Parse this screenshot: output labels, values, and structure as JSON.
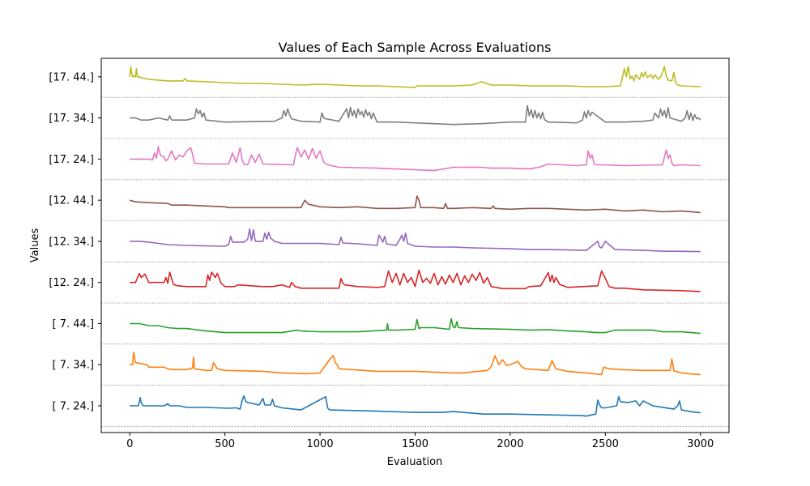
{
  "chart_data": {
    "type": "line",
    "title": "Values of Each Sample Across Evaluations",
    "xlabel": "Evaluation",
    "ylabel": "Values",
    "xlim": [
      -150,
      3150
    ],
    "ylim": [
      -0.15,
      8.95
    ],
    "x_ticks": [
      0,
      500,
      1000,
      1500,
      2000,
      2500,
      3000
    ],
    "y_ticks": [
      {
        "value": 0.5,
        "label": "[ 7. 24.]"
      },
      {
        "value": 1.5,
        "label": "[ 7. 34.]"
      },
      {
        "value": 2.5,
        "label": "[ 7. 44.]"
      },
      {
        "value": 3.5,
        "label": "[12. 24.]"
      },
      {
        "value": 4.5,
        "label": "[12. 34.]"
      },
      {
        "value": 5.5,
        "label": "[12. 44.]"
      },
      {
        "value": 6.5,
        "label": "[17. 24.]"
      },
      {
        "value": 7.5,
        "label": "[17. 34.]"
      },
      {
        "value": 8.5,
        "label": "[17. 44.]"
      }
    ],
    "hlines": [
      0,
      1,
      2,
      3,
      4,
      5,
      6,
      7,
      8
    ],
    "series": [
      {
        "color": "#1f77b4",
        "x": [
          0,
          45,
          55,
          60,
          70,
          80,
          140,
          180,
          200,
          210,
          260,
          300,
          400,
          520,
          560,
          580,
          590,
          600,
          610,
          620,
          680,
          700,
          710,
          740,
          750,
          760,
          800,
          900,
          1030,
          1040,
          1050,
          1300,
          1500,
          1650,
          1700,
          1860,
          2000,
          2200,
          2300,
          2380,
          2400,
          2450,
          2460,
          2470,
          2480,
          2500,
          2560,
          2570,
          2580,
          2620,
          2660,
          2680,
          2700,
          2750,
          2860,
          2880,
          2890,
          2900,
          2960,
          3000
        ],
        "y": [
          0.5,
          0.5,
          0.7,
          0.58,
          0.5,
          0.5,
          0.5,
          0.5,
          0.55,
          0.5,
          0.5,
          0.46,
          0.46,
          0.44,
          0.45,
          0.42,
          0.62,
          0.74,
          0.6,
          0.58,
          0.52,
          0.68,
          0.52,
          0.52,
          0.66,
          0.5,
          0.45,
          0.4,
          0.72,
          0.45,
          0.4,
          0.37,
          0.34,
          0.34,
          0.36,
          0.3,
          0.3,
          0.28,
          0.27,
          0.26,
          0.25,
          0.3,
          0.64,
          0.52,
          0.45,
          0.45,
          0.5,
          0.72,
          0.6,
          0.58,
          0.62,
          0.5,
          0.62,
          0.5,
          0.42,
          0.5,
          0.62,
          0.4,
          0.35,
          0.33
        ]
      },
      {
        "color": "#ff7f0e",
        "x": [
          0,
          15,
          20,
          30,
          90,
          100,
          180,
          200,
          230,
          300,
          330,
          335,
          340,
          400,
          430,
          440,
          460,
          500,
          700,
          800,
          930,
          1000,
          1050,
          1070,
          1080,
          1090,
          1100,
          1300,
          1500,
          1700,
          1750,
          1880,
          1900,
          1920,
          1940,
          1960,
          1980,
          2000,
          2040,
          2060,
          2080,
          2200,
          2220,
          2240,
          2300,
          2400,
          2480,
          2490,
          2520,
          2580,
          2700,
          2840,
          2850,
          2860,
          2900,
          2940,
          3000
        ],
        "y": [
          1.5,
          1.5,
          1.8,
          1.55,
          1.5,
          1.44,
          1.44,
          1.4,
          1.38,
          1.38,
          1.42,
          1.68,
          1.4,
          1.36,
          1.36,
          1.55,
          1.4,
          1.36,
          1.34,
          1.3,
          1.28,
          1.3,
          1.62,
          1.72,
          1.55,
          1.5,
          1.4,
          1.34,
          1.34,
          1.3,
          1.3,
          1.36,
          1.45,
          1.72,
          1.5,
          1.62,
          1.48,
          1.5,
          1.58,
          1.45,
          1.4,
          1.36,
          1.6,
          1.4,
          1.34,
          1.3,
          1.26,
          1.44,
          1.4,
          1.38,
          1.36,
          1.36,
          1.64,
          1.35,
          1.3,
          1.28,
          1.26
        ]
      },
      {
        "color": "#2ca02c",
        "x": [
          0,
          50,
          100,
          150,
          200,
          250,
          300,
          350,
          400,
          500,
          800,
          880,
          900,
          1000,
          1200,
          1350,
          1355,
          1360,
          1400,
          1500,
          1510,
          1520,
          1530,
          1600,
          1680,
          1690,
          1700,
          1710,
          1720,
          1725,
          1730,
          1800,
          2000,
          2100,
          2200,
          2300,
          2400,
          2450,
          2500,
          2550,
          2750,
          2800,
          2900,
          3000
        ],
        "y": [
          2.5,
          2.5,
          2.45,
          2.45,
          2.4,
          2.38,
          2.38,
          2.35,
          2.32,
          2.28,
          2.28,
          2.34,
          2.32,
          2.3,
          2.3,
          2.34,
          2.5,
          2.34,
          2.34,
          2.36,
          2.6,
          2.38,
          2.4,
          2.4,
          2.36,
          2.62,
          2.42,
          2.4,
          2.55,
          2.42,
          2.4,
          2.38,
          2.36,
          2.34,
          2.35,
          2.32,
          2.3,
          2.28,
          2.28,
          2.34,
          2.34,
          2.3,
          2.3,
          2.26
        ]
      },
      {
        "color": "#d62728",
        "x": [
          0,
          30,
          50,
          60,
          80,
          100,
          180,
          190,
          200,
          210,
          230,
          250,
          300,
          400,
          410,
          420,
          430,
          450,
          460,
          480,
          500,
          550,
          570,
          700,
          750,
          800,
          840,
          850,
          870,
          900,
          1100,
          1110,
          1120,
          1130,
          1200,
          1300,
          1340,
          1360,
          1380,
          1400,
          1420,
          1440,
          1460,
          1480,
          1500,
          1520,
          1540,
          1560,
          1580,
          1600,
          1620,
          1640,
          1660,
          1680,
          1700,
          1720,
          1740,
          1760,
          1780,
          1800,
          1820,
          1840,
          1860,
          1880,
          1900,
          1960,
          2080,
          2100,
          2160,
          2200,
          2210,
          2220,
          2230,
          2240,
          2260,
          2290,
          2300,
          2460,
          2480,
          2500,
          2520,
          2550,
          2600,
          2700,
          2900,
          3000
        ],
        "y": [
          3.5,
          3.5,
          3.72,
          3.62,
          3.7,
          3.5,
          3.5,
          3.62,
          3.48,
          3.75,
          3.45,
          3.42,
          3.4,
          3.4,
          3.68,
          3.55,
          3.75,
          3.62,
          3.72,
          3.48,
          3.4,
          3.4,
          3.44,
          3.4,
          3.4,
          3.44,
          3.38,
          3.5,
          3.4,
          3.36,
          3.36,
          3.6,
          3.48,
          3.44,
          3.4,
          3.38,
          3.4,
          3.78,
          3.5,
          3.72,
          3.44,
          3.72,
          3.5,
          3.62,
          3.4,
          3.8,
          3.5,
          3.6,
          3.48,
          3.72,
          3.44,
          3.64,
          3.46,
          3.68,
          3.5,
          3.72,
          3.44,
          3.66,
          3.5,
          3.7,
          3.55,
          3.74,
          3.48,
          3.62,
          3.4,
          3.35,
          3.35,
          3.4,
          3.42,
          3.74,
          3.52,
          3.68,
          3.5,
          3.62,
          3.45,
          3.4,
          3.38,
          3.42,
          3.78,
          3.6,
          3.4,
          3.36,
          3.36,
          3.32,
          3.3,
          3.28
        ]
      },
      {
        "color": "#9467bd",
        "x": [
          0,
          50,
          100,
          150,
          200,
          300,
          500,
          520,
          530,
          540,
          600,
          620,
          630,
          640,
          650,
          660,
          700,
          710,
          720,
          730,
          740,
          760,
          800,
          1000,
          1100,
          1110,
          1120,
          1200,
          1300,
          1310,
          1330,
          1340,
          1350,
          1400,
          1420,
          1430,
          1440,
          1450,
          1460,
          1500,
          1600,
          1700,
          1800,
          2000,
          2100,
          2200,
          2400,
          2460,
          2470,
          2480,
          2500,
          2550,
          2700,
          2800,
          3000
        ],
        "y": [
          4.5,
          4.5,
          4.48,
          4.45,
          4.42,
          4.4,
          4.38,
          4.42,
          4.62,
          4.48,
          4.48,
          4.55,
          4.8,
          4.52,
          4.78,
          4.5,
          4.5,
          4.7,
          4.55,
          4.72,
          4.58,
          4.5,
          4.45,
          4.45,
          4.42,
          4.6,
          4.46,
          4.44,
          4.4,
          4.65,
          4.48,
          4.62,
          4.44,
          4.4,
          4.55,
          4.65,
          4.5,
          4.7,
          4.45,
          4.38,
          4.36,
          4.36,
          4.34,
          4.32,
          4.3,
          4.3,
          4.28,
          4.5,
          4.36,
          4.34,
          4.5,
          4.3,
          4.28,
          4.26,
          4.25
        ]
      },
      {
        "color": "#8c564b",
        "x": [
          0,
          30,
          100,
          200,
          220,
          300,
          400,
          500,
          520,
          700,
          800,
          900,
          920,
          940,
          960,
          1000,
          1100,
          1200,
          1300,
          1400,
          1500,
          1510,
          1520,
          1530,
          1600,
          1650,
          1660,
          1670,
          1700,
          1800,
          1900,
          1910,
          1920,
          2000,
          2100,
          2200,
          2300,
          2400,
          2500,
          2600,
          2700,
          2800,
          2900,
          3000
        ],
        "y": [
          5.5,
          5.46,
          5.44,
          5.42,
          5.38,
          5.38,
          5.36,
          5.34,
          5.32,
          5.32,
          5.32,
          5.32,
          5.5,
          5.4,
          5.38,
          5.34,
          5.32,
          5.34,
          5.3,
          5.3,
          5.32,
          5.6,
          5.5,
          5.32,
          5.32,
          5.3,
          5.42,
          5.3,
          5.3,
          5.32,
          5.3,
          5.36,
          5.3,
          5.28,
          5.3,
          5.3,
          5.28,
          5.26,
          5.28,
          5.24,
          5.26,
          5.22,
          5.24,
          5.2
        ]
      },
      {
        "color": "#e377c2",
        "x": [
          0,
          100,
          120,
          130,
          140,
          150,
          160,
          180,
          190,
          200,
          220,
          240,
          260,
          280,
          300,
          320,
          330,
          340,
          400,
          520,
          540,
          560,
          580,
          590,
          600,
          620,
          640,
          660,
          680,
          700,
          860,
          880,
          900,
          920,
          940,
          960,
          980,
          1000,
          1020,
          1040,
          1100,
          1300,
          1500,
          1600,
          1700,
          1850,
          1900,
          2000,
          2100,
          2150,
          2200,
          2350,
          2400,
          2410,
          2420,
          2430,
          2440,
          2450,
          2500,
          2600,
          2800,
          2820,
          2830,
          2840,
          2850,
          2860,
          2900,
          3000
        ],
        "y": [
          6.5,
          6.5,
          6.48,
          6.65,
          6.52,
          6.8,
          6.6,
          6.55,
          6.46,
          6.5,
          6.7,
          6.48,
          6.6,
          6.55,
          6.7,
          6.78,
          6.62,
          6.4,
          6.38,
          6.38,
          6.65,
          6.42,
          6.78,
          6.5,
          6.38,
          6.36,
          6.6,
          6.42,
          6.62,
          6.38,
          6.36,
          6.78,
          6.55,
          6.72,
          6.5,
          6.76,
          6.52,
          6.7,
          6.42,
          6.36,
          6.3,
          6.28,
          6.24,
          6.22,
          6.3,
          6.3,
          6.28,
          6.28,
          6.26,
          6.3,
          6.38,
          6.34,
          6.36,
          6.7,
          6.52,
          6.6,
          6.4,
          6.36,
          6.36,
          6.34,
          6.36,
          6.72,
          6.52,
          6.6,
          6.4,
          6.34,
          6.36,
          6.34
        ]
      },
      {
        "color": "#7f7f7f",
        "x": [
          0,
          30,
          60,
          100,
          150,
          200,
          210,
          220,
          300,
          340,
          350,
          360,
          370,
          380,
          390,
          400,
          500,
          760,
          800,
          810,
          820,
          830,
          840,
          850,
          900,
          1000,
          1010,
          1020,
          1030,
          1100,
          1130,
          1140,
          1150,
          1160,
          1170,
          1180,
          1190,
          1200,
          1210,
          1220,
          1230,
          1240,
          1250,
          1260,
          1270,
          1280,
          1290,
          1300,
          1400,
          1500,
          1700,
          1850,
          2000,
          2080,
          2090,
          2100,
          2110,
          2120,
          2130,
          2140,
          2150,
          2160,
          2170,
          2180,
          2200,
          2350,
          2380,
          2390,
          2400,
          2410,
          2420,
          2430,
          2500,
          2600,
          2700,
          2750,
          2760,
          2780,
          2790,
          2800,
          2810,
          2820,
          2830,
          2840,
          2900,
          2920,
          2930,
          2940,
          2950,
          2960,
          2970,
          2980,
          2990,
          3000
        ],
        "y": [
          7.5,
          7.5,
          7.45,
          7.45,
          7.5,
          7.45,
          7.55,
          7.45,
          7.45,
          7.5,
          7.72,
          7.6,
          7.68,
          7.52,
          7.62,
          7.45,
          7.4,
          7.42,
          7.5,
          7.68,
          7.55,
          7.72,
          7.58,
          7.48,
          7.42,
          7.4,
          7.62,
          7.5,
          7.48,
          7.42,
          7.65,
          7.72,
          7.5,
          7.76,
          7.55,
          7.68,
          7.5,
          7.72,
          7.58,
          7.66,
          7.52,
          7.7,
          7.56,
          7.64,
          7.48,
          7.62,
          7.5,
          7.4,
          7.4,
          7.38,
          7.34,
          7.36,
          7.4,
          7.4,
          7.8,
          7.55,
          7.7,
          7.5,
          7.68,
          7.5,
          7.62,
          7.48,
          7.64,
          7.46,
          7.4,
          7.38,
          7.45,
          7.65,
          7.5,
          7.68,
          7.55,
          7.64,
          7.4,
          7.4,
          7.42,
          7.45,
          7.62,
          7.5,
          7.72,
          7.55,
          7.68,
          7.5,
          7.75,
          7.5,
          7.42,
          7.5,
          7.68,
          7.46,
          7.62,
          7.44,
          7.58,
          7.48,
          7.5,
          7.45
        ]
      },
      {
        "color": "#bcbd22",
        "x": [
          0,
          5,
          10,
          15,
          20,
          30,
          35,
          40,
          50,
          60,
          80,
          100,
          150,
          200,
          280,
          290,
          300,
          400,
          500,
          600,
          700,
          800,
          900,
          1000,
          1100,
          1200,
          1300,
          1400,
          1500,
          1510,
          1700,
          1800,
          1850,
          1900,
          2000,
          2100,
          2200,
          2300,
          2400,
          2500,
          2580,
          2600,
          2610,
          2620,
          2630,
          2640,
          2650,
          2660,
          2680,
          2690,
          2700,
          2710,
          2720,
          2740,
          2750,
          2760,
          2780,
          2790,
          2800,
          2810,
          2820,
          2830,
          2850,
          2860,
          2870,
          2880,
          2900,
          3000
        ],
        "y": [
          8.5,
          8.75,
          8.6,
          8.5,
          8.52,
          8.5,
          8.7,
          8.5,
          8.5,
          8.48,
          8.46,
          8.44,
          8.42,
          8.4,
          8.4,
          8.46,
          8.4,
          8.38,
          8.36,
          8.34,
          8.34,
          8.32,
          8.3,
          8.32,
          8.3,
          8.28,
          8.28,
          8.26,
          8.24,
          8.28,
          8.28,
          8.3,
          8.38,
          8.3,
          8.3,
          8.28,
          8.28,
          8.28,
          8.26,
          8.26,
          8.28,
          8.7,
          8.5,
          8.75,
          8.45,
          8.52,
          8.4,
          8.55,
          8.44,
          8.6,
          8.5,
          8.62,
          8.48,
          8.55,
          8.46,
          8.55,
          8.44,
          8.5,
          8.6,
          8.75,
          8.52,
          8.42,
          8.4,
          8.6,
          8.36,
          8.3,
          8.28,
          8.26
        ]
      }
    ]
  }
}
